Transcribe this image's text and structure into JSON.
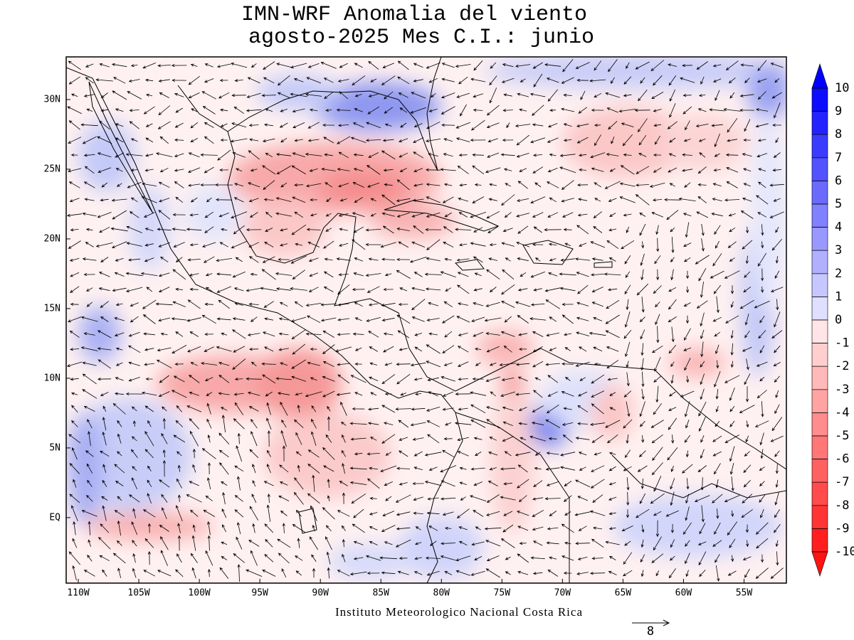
{
  "chart_data": {
    "type": "map",
    "title": [
      "IMN-WRF Anomalia del viento",
      "agosto-2025 Mes C.I.: junio"
    ],
    "footer": "Instituto Meteorologico Nacional Costa Rica",
    "reference_vector": {
      "label": "8"
    },
    "xlim": [
      -111,
      -51.5
    ],
    "ylim": [
      -4.7,
      33.06
    ],
    "xticks": [
      {
        "value": -110,
        "label": "110W"
      },
      {
        "value": -105,
        "label": "105W"
      },
      {
        "value": -100,
        "label": "100W"
      },
      {
        "value": -95,
        "label": "95W"
      },
      {
        "value": -90,
        "label": "90W"
      },
      {
        "value": -85,
        "label": "85W"
      },
      {
        "value": -80,
        "label": "80W"
      },
      {
        "value": -75,
        "label": "75W"
      },
      {
        "value": -70,
        "label": "70W"
      },
      {
        "value": -65,
        "label": "65W"
      },
      {
        "value": -60,
        "label": "60W"
      },
      {
        "value": -55,
        "label": "55W"
      }
    ],
    "yticks": [
      {
        "value": 30,
        "label": "30N"
      },
      {
        "value": 25,
        "label": "25N"
      },
      {
        "value": 20,
        "label": "20N"
      },
      {
        "value": 15,
        "label": "15N"
      },
      {
        "value": 10,
        "label": "10N"
      },
      {
        "value": 5,
        "label": "5N"
      },
      {
        "value": 0,
        "label": "EQ"
      }
    ],
    "colorbar": {
      "levels": [
        10,
        9,
        8,
        7,
        6,
        5,
        4,
        3,
        2,
        1,
        0,
        -1,
        -2,
        -3,
        -4,
        -5,
        -6,
        -7,
        -8,
        -9,
        -10
      ],
      "positive_color": "#0000ff",
      "negative_color": "#ff0000"
    }
  }
}
